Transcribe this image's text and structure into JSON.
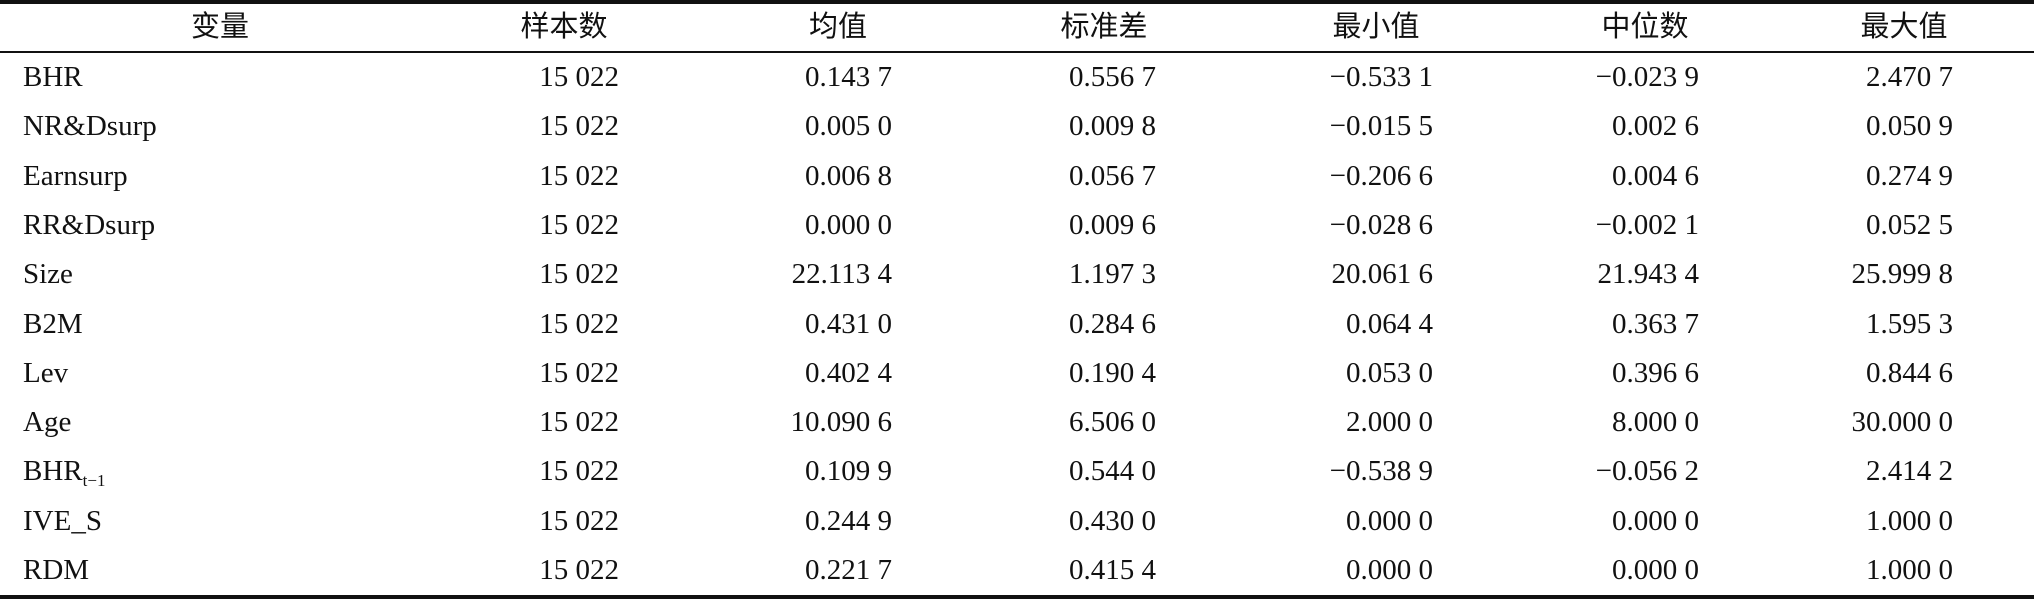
{
  "table": {
    "header": [
      "变量",
      "样本数",
      "均值",
      "标准差",
      "最小值",
      "中位数",
      "最大值"
    ],
    "rows": [
      [
        "BHR",
        "15 022",
        "0.143 7",
        "0.556 7",
        "−0.533 1",
        "−0.023 9",
        "2.470 7"
      ],
      [
        "NR&Dsurp",
        "15 022",
        "0.005 0",
        "0.009 8",
        "−0.015 5",
        "0.002 6",
        "0.050 9"
      ],
      [
        "Earnsurp",
        "15 022",
        "0.006 8",
        "0.056 7",
        "−0.206 6",
        "0.004 6",
        "0.274 9"
      ],
      [
        "RR&Dsurp",
        "15 022",
        "0.000 0",
        "0.009 6",
        "−0.028 6",
        "−0.002 1",
        "0.052 5"
      ],
      [
        "Size",
        "15 022",
        "22.113 4",
        "1.197 3",
        "20.061 6",
        "21.943 4",
        "25.999 8"
      ],
      [
        "B2M",
        "15 022",
        "0.431 0",
        "0.284 6",
        "0.064 4",
        "0.363 7",
        "1.595 3"
      ],
      [
        "Lev",
        "15 022",
        "0.402 4",
        "0.190 4",
        "0.053 0",
        "0.396 6",
        "0.844 6"
      ],
      [
        "Age",
        "15 022",
        "10.090 6",
        "6.506 0",
        "2.000 0",
        "8.000 0",
        "30.000 0"
      ],
      [
        {
          "text": "BHR",
          "sub": "t−1"
        },
        "15 022",
        "0.109 9",
        "0.544 0",
        "−0.538 9",
        "−0.056 2",
        "2.414 2"
      ],
      [
        "IVE_S",
        "15 022",
        "0.244 9",
        "0.430 0",
        "0.000 0",
        "0.000 0",
        "1.000 0"
      ],
      [
        "RDM",
        "15 022",
        "0.221 7",
        "0.415 4",
        "0.000 0",
        "0.000 0",
        "1.000 0"
      ]
    ]
  }
}
